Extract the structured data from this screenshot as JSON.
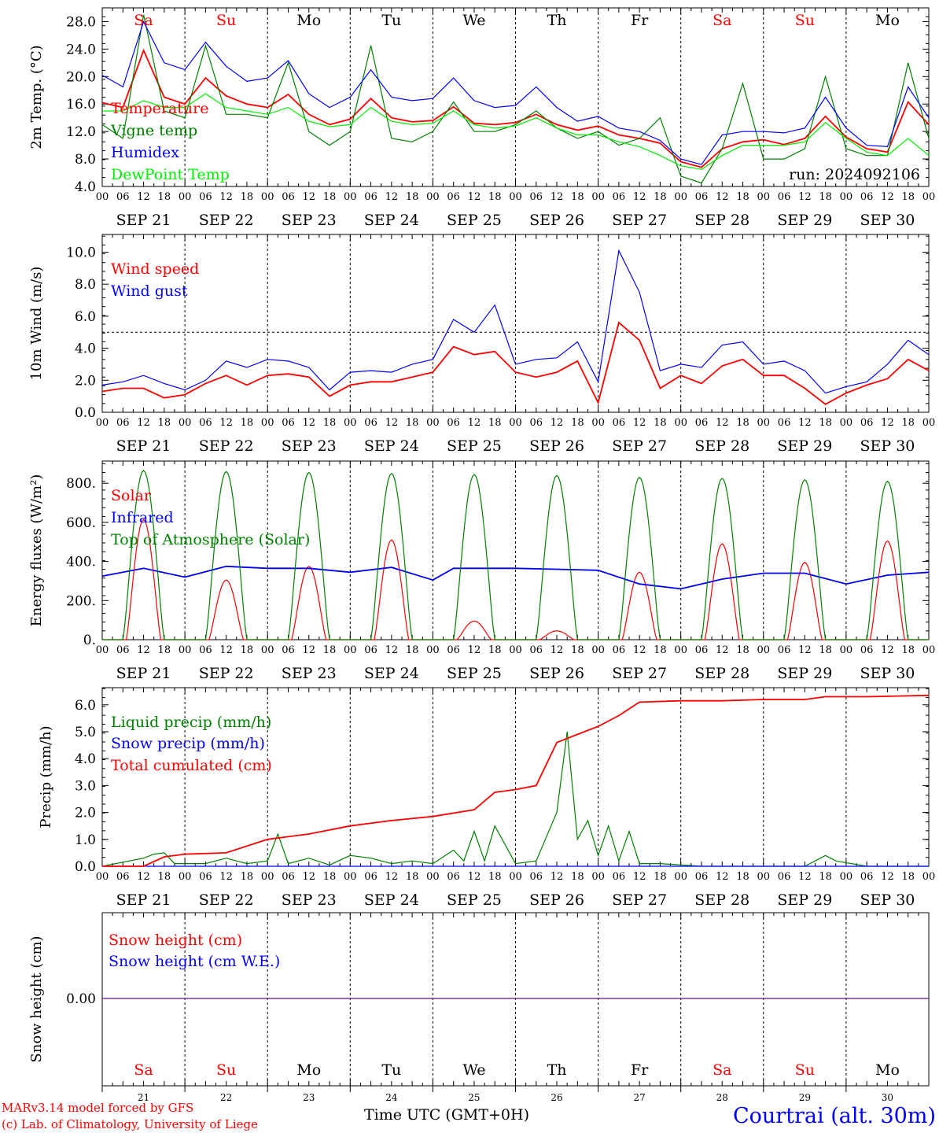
{
  "days": [
    "Sa",
    "Su",
    "Mo",
    "Tu",
    "We",
    "Th",
    "Fr",
    "Sa",
    "Su",
    "Mo"
  ],
  "dates": [
    "SEP 21",
    "SEP 22",
    "SEP 23",
    "SEP 24",
    "SEP 25",
    "SEP 26",
    "SEP 27",
    "SEP 28",
    "SEP 29",
    "SEP 30"
  ],
  "day_numbers": [
    "21",
    "22",
    "23",
    "24",
    "25",
    "26",
    "27",
    "28",
    "29",
    "30"
  ],
  "hour_ticks": [
    "00",
    "06",
    "12",
    "18"
  ],
  "final_hour": "00",
  "colors": {
    "weekend": "#ff0000",
    "weekday": "#000000",
    "red": "#ff0000",
    "green": "#008000",
    "blue": "#0000ff",
    "lightgreen": "#00ee00",
    "purple": "#7030a0"
  },
  "footer": {
    "model": "MARv3.14 model forced by GFS",
    "credit": "(c) Lab. of Climatology, University of Liege",
    "time_label": "Time UTC (GMT+0H)",
    "location": "Courtrai (alt. 30m)"
  },
  "chart_data": [
    {
      "type": "line",
      "ylabel": "2m Temp. (°C)",
      "ylim": [
        4,
        30
      ],
      "yticks": [
        "4.0",
        "8.0",
        "12.0",
        "16.0",
        "20.0",
        "24.0",
        "28.0"
      ],
      "annotation": "run: 2024092106",
      "x_range": [
        "2024-09-21 00 UTC",
        "2024-10-01 00 UTC"
      ],
      "series": [
        {
          "name": "Temperature",
          "color": "#ff0000",
          "x": [
            0,
            6,
            12,
            18,
            24,
            30,
            36,
            42,
            48,
            54,
            60,
            66,
            72,
            78,
            84,
            90,
            96,
            102,
            108,
            114,
            120,
            126,
            132,
            138,
            144,
            150,
            156,
            162,
            168,
            174,
            180,
            186,
            192,
            198,
            204,
            210,
            216,
            222,
            228,
            234,
            240
          ],
          "y": [
            16.2,
            15.5,
            23.8,
            17.0,
            16.0,
            19.8,
            17.2,
            16.0,
            15.5,
            17.4,
            14.5,
            13.0,
            13.8,
            16.8,
            14.0,
            13.4,
            13.6,
            15.6,
            13.2,
            13.0,
            13.3,
            14.5,
            13.0,
            12.2,
            12.8,
            11.5,
            11.0,
            10.3,
            7.6,
            6.8,
            9.5,
            10.5,
            10.8,
            10.1,
            11.0,
            14.2,
            11.2,
            9.5,
            9.0,
            16.3,
            13.0
          ]
        },
        {
          "name": "Vigne temp",
          "color": "#008000",
          "x": [
            0,
            6,
            12,
            18,
            24,
            30,
            36,
            42,
            48,
            54,
            60,
            66,
            72,
            78,
            84,
            90,
            96,
            102,
            108,
            114,
            120,
            126,
            132,
            138,
            144,
            150,
            156,
            162,
            168,
            174,
            180,
            186,
            192,
            198,
            204,
            210,
            216,
            222,
            228,
            234,
            240
          ],
          "y": [
            13.0,
            11.0,
            29.0,
            15.0,
            14.0,
            24.5,
            14.5,
            14.5,
            14.0,
            22.0,
            12.0,
            10.0,
            12.0,
            24.5,
            11.0,
            10.5,
            12.0,
            16.3,
            12.0,
            12.0,
            13.0,
            15.0,
            12.5,
            11.0,
            12.0,
            10.0,
            11.0,
            14.0,
            5.5,
            4.5,
            9.5,
            19.0,
            8.0,
            8.0,
            9.5,
            20.0,
            9.5,
            8.5,
            8.5,
            22.0,
            11.0
          ]
        },
        {
          "name": "Humidex",
          "color": "#0000ff",
          "x": [
            0,
            6,
            12,
            18,
            24,
            30,
            36,
            42,
            48,
            54,
            60,
            66,
            72,
            78,
            84,
            90,
            96,
            102,
            108,
            114,
            120,
            126,
            132,
            138,
            144,
            150,
            156,
            162,
            168,
            174,
            180,
            186,
            192,
            198,
            204,
            210,
            216,
            222,
            228,
            234,
            240
          ],
          "y": [
            20.2,
            18.5,
            28.0,
            22.0,
            21.0,
            25.0,
            21.5,
            19.3,
            19.8,
            22.3,
            17.5,
            15.5,
            17.0,
            21.0,
            17.0,
            16.5,
            16.8,
            19.8,
            16.5,
            15.5,
            15.8,
            18.5,
            15.5,
            13.5,
            14.2,
            12.5,
            12.0,
            10.7,
            8.0,
            7.2,
            11.5,
            12.0,
            12.0,
            11.8,
            12.5,
            17.0,
            12.5,
            10.0,
            9.8,
            18.5,
            14.0
          ]
        },
        {
          "name": "DewPoint Temp",
          "color": "#00ee00",
          "x": [
            0,
            6,
            12,
            18,
            24,
            30,
            36,
            42,
            48,
            54,
            60,
            66,
            72,
            78,
            84,
            90,
            96,
            102,
            108,
            114,
            120,
            126,
            132,
            138,
            144,
            150,
            156,
            162,
            168,
            174,
            180,
            186,
            192,
            198,
            204,
            210,
            216,
            222,
            228,
            234,
            240
          ],
          "y": [
            15.0,
            15.0,
            16.5,
            15.5,
            15.5,
            17.5,
            15.5,
            15.0,
            14.5,
            15.5,
            13.5,
            12.7,
            13.0,
            15.5,
            13.5,
            13.0,
            13.2,
            15.0,
            13.0,
            12.5,
            12.8,
            14.0,
            12.5,
            11.5,
            11.5,
            10.5,
            9.8,
            8.5,
            7.0,
            6.5,
            8.5,
            10.0,
            10.0,
            10.0,
            10.5,
            13.3,
            11.0,
            9.0,
            8.5,
            11.0,
            8.5
          ]
        }
      ]
    },
    {
      "type": "line",
      "ylabel": "10m Wind (m/s)",
      "ylim": [
        0,
        11
      ],
      "yticks": [
        "0.0",
        "2.0",
        "4.0",
        "6.0",
        "8.0",
        "10.0"
      ],
      "reference_line": 5.0,
      "series": [
        {
          "name": "Wind speed",
          "color": "#ff0000",
          "x": [
            0,
            6,
            12,
            18,
            24,
            30,
            36,
            42,
            48,
            54,
            60,
            66,
            72,
            78,
            84,
            90,
            96,
            102,
            108,
            114,
            120,
            126,
            132,
            138,
            144,
            150,
            156,
            162,
            168,
            174,
            180,
            186,
            192,
            198,
            204,
            210,
            216,
            222,
            228,
            234,
            240
          ],
          "y": [
            1.3,
            1.5,
            1.5,
            0.9,
            1.1,
            1.8,
            2.3,
            1.7,
            2.3,
            2.4,
            2.2,
            1.0,
            1.7,
            1.9,
            1.9,
            2.2,
            2.5,
            4.1,
            3.6,
            3.8,
            2.5,
            2.2,
            2.5,
            3.2,
            0.6,
            5.6,
            4.5,
            1.5,
            2.3,
            1.8,
            2.9,
            3.3,
            2.3,
            2.3,
            1.5,
            0.5,
            1.2,
            1.7,
            2.1,
            3.3,
            2.6
          ]
        },
        {
          "name": "Wind gust",
          "color": "#0000ff",
          "x": [
            0,
            6,
            12,
            18,
            24,
            30,
            36,
            42,
            48,
            54,
            60,
            66,
            72,
            78,
            84,
            90,
            96,
            102,
            108,
            114,
            120,
            126,
            132,
            138,
            144,
            150,
            156,
            162,
            168,
            174,
            180,
            186,
            192,
            198,
            204,
            210,
            216,
            222,
            228,
            234,
            240
          ],
          "y": [
            1.7,
            1.9,
            2.3,
            1.8,
            1.4,
            2.0,
            3.2,
            2.8,
            3.3,
            3.2,
            2.8,
            1.4,
            2.5,
            2.6,
            2.5,
            3.0,
            3.3,
            5.8,
            5.0,
            6.7,
            3.0,
            3.3,
            3.4,
            4.4,
            1.9,
            10.1,
            7.5,
            2.6,
            3.0,
            2.8,
            4.2,
            4.4,
            3.0,
            3.2,
            2.6,
            1.2,
            1.6,
            1.9,
            3.0,
            4.5,
            3.6
          ]
        }
      ]
    },
    {
      "type": "line",
      "ylabel": "Energy fluxes (W/m²)",
      "ylim": [
        0,
        900
      ],
      "yticks": [
        "0.",
        "200.",
        "400.",
        "600.",
        "800."
      ],
      "series": [
        {
          "name": "Solar",
          "color": "#ff0000",
          "daily_peak": [
            615,
            305,
            375,
            510,
            95,
            45,
            345,
            490,
            395,
            505
          ]
        },
        {
          "name": "Infrared",
          "color": "#0000ff",
          "x": [
            0,
            12,
            24,
            36,
            48,
            60,
            72,
            84,
            96,
            102,
            108,
            120,
            132,
            144,
            156,
            168,
            180,
            192,
            204,
            216,
            228,
            240
          ],
          "y": [
            325,
            365,
            320,
            375,
            365,
            365,
            345,
            370,
            305,
            365,
            365,
            365,
            360,
            355,
            285,
            260,
            310,
            340,
            340,
            285,
            330,
            345
          ]
        },
        {
          "name": "Top of Atmosphere (Solar)",
          "color": "#008000",
          "daily_peak": [
            865,
            860,
            855,
            850,
            845,
            840,
            830,
            825,
            818,
            810
          ]
        }
      ]
    },
    {
      "type": "line",
      "ylabel": "Precip (mm/h)",
      "ylim": [
        0,
        6.6
      ],
      "yticks": [
        "0.0",
        "1.0",
        "2.0",
        "3.0",
        "4.0",
        "5.0",
        "6.0"
      ],
      "series": [
        {
          "name": "Liquid precip (mm/h)",
          "color": "#008000",
          "x": [
            0,
            12,
            15,
            18,
            21,
            30,
            36,
            42,
            48,
            51,
            54,
            60,
            66,
            72,
            78,
            84,
            90,
            96,
            102,
            105,
            108,
            111,
            114,
            120,
            126,
            132,
            135,
            138,
            141,
            144,
            147,
            150,
            153,
            156,
            162,
            174,
            204,
            210,
            213,
            222,
            240
          ],
          "y": [
            0,
            0.3,
            0.45,
            0.5,
            0.1,
            0.1,
            0.3,
            0.1,
            0.2,
            1.2,
            0.1,
            0.3,
            0.05,
            0.4,
            0.3,
            0.1,
            0.2,
            0.1,
            0.6,
            0.2,
            1.3,
            0.2,
            1.5,
            0.1,
            0.2,
            2.0,
            5.0,
            1.0,
            1.7,
            0.4,
            1.5,
            0.2,
            1.3,
            0.1,
            0.1,
            0,
            0,
            0.4,
            0.2,
            0,
            0
          ]
        },
        {
          "name": "Snow precip (mm/h)",
          "color": "#0000ff",
          "x": [
            0,
            240
          ],
          "y": [
            0,
            0
          ]
        },
        {
          "name": "Total cumulated (cm)",
          "color": "#ff0000",
          "x": [
            0,
            12,
            18,
            24,
            36,
            48,
            60,
            72,
            84,
            96,
            108,
            114,
            120,
            126,
            132,
            138,
            144,
            150,
            156,
            168,
            180,
            192,
            204,
            210,
            222,
            240
          ],
          "y": [
            0,
            0,
            0.35,
            0.45,
            0.5,
            1.0,
            1.2,
            1.5,
            1.7,
            1.85,
            2.1,
            2.75,
            2.85,
            3.0,
            4.6,
            4.9,
            5.2,
            5.6,
            6.1,
            6.15,
            6.15,
            6.2,
            6.2,
            6.3,
            6.3,
            6.35
          ]
        }
      ]
    },
    {
      "type": "line",
      "ylabel": "Snow height (cm)",
      "yticks": [
        "0.00"
      ],
      "series": [
        {
          "name": "Snow height (cm)",
          "color": "#ff0000",
          "x": [
            0,
            240
          ],
          "y": [
            0,
            0
          ]
        },
        {
          "name": "Snow height (cm W.E.)",
          "color": "#0000ff",
          "x": [
            0,
            240
          ],
          "y": [
            0,
            0
          ]
        }
      ]
    }
  ]
}
